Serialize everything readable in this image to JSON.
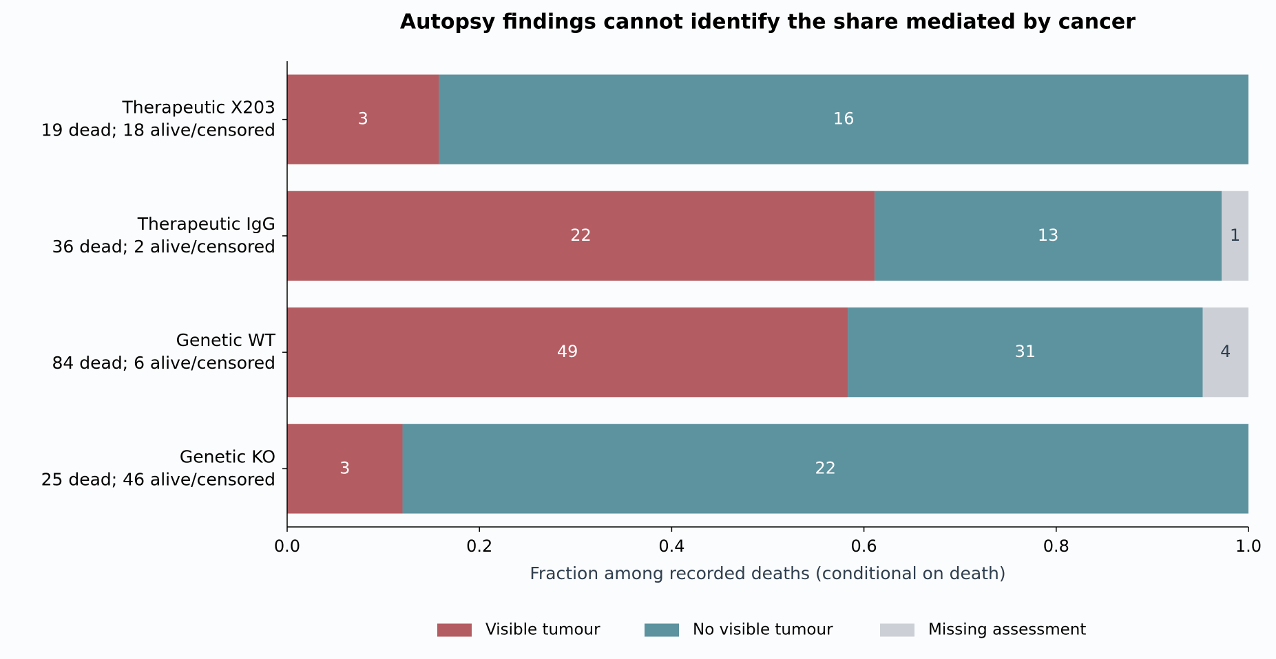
{
  "chart_data": {
    "type": "bar",
    "orientation": "horizontal",
    "stacking": "normalized",
    "title": "Autopsy findings cannot identify the share mediated by cancer",
    "xlabel": "Fraction among recorded deaths (conditional on death)",
    "categories": [
      "Therapeutic X203",
      "Therapeutic IgG",
      "Genetic WT",
      "Genetic KO"
    ],
    "category_details": [
      "19 dead; 18 alive/censored",
      "36 dead; 2 alive/censored",
      "84 dead; 6 alive/censored",
      "25 dead; 46 alive/censored"
    ],
    "series": [
      {
        "name": "Visible tumour",
        "color": "#b35c62",
        "label_color": "#ffffff",
        "values": [
          3,
          22,
          49,
          3
        ]
      },
      {
        "name": "No visible tumour",
        "color": "#5d929f",
        "label_color": "#ffffff",
        "values": [
          16,
          13,
          31,
          22
        ]
      },
      {
        "name": "Missing assessment",
        "color": "#ccd0d6",
        "label_color": "#2f3e4e",
        "values": [
          0,
          1,
          4,
          0
        ]
      }
    ],
    "xlim": [
      0,
      1
    ],
    "xticks": [
      {
        "value": 0,
        "label": "0.0"
      },
      {
        "value": 0.2,
        "label": "0.2"
      },
      {
        "value": 0.4,
        "label": "0.4"
      },
      {
        "value": 0.6,
        "label": "0.6"
      },
      {
        "value": 0.8,
        "label": "0.8"
      },
      {
        "value": 1,
        "label": "1.0"
      }
    ],
    "legend": "bottom",
    "grid": false
  }
}
